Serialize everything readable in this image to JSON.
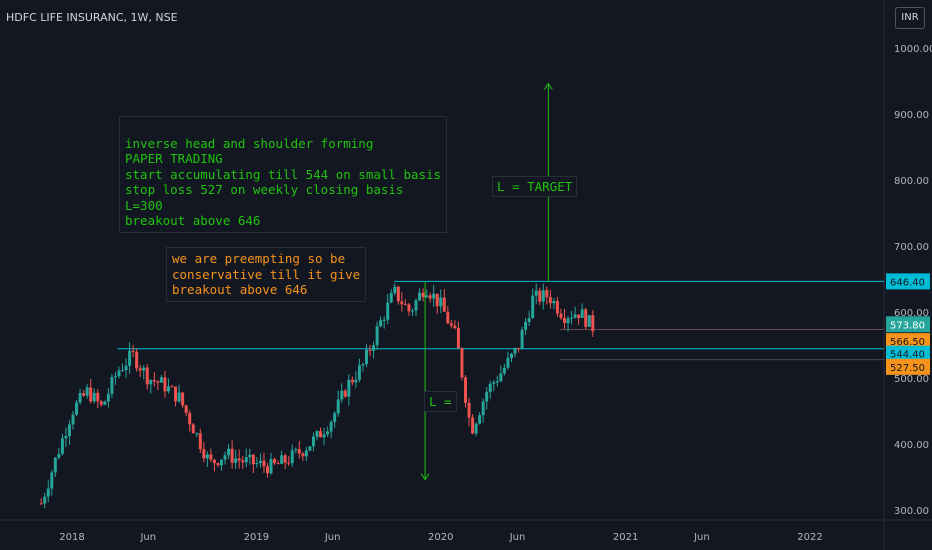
{
  "header": {
    "title": "HDFC LIFE INSURANC, 1W, NSE",
    "currency_button": "INR"
  },
  "annotations": {
    "green_note": [
      "inverse head and shoulder forming",
      "PAPER TRADING",
      "start accumulating till 544 on small basis",
      "stop loss 527 on weekly closing basis",
      "L=300",
      "breakout above 646"
    ],
    "orange_note": [
      "we are preempting so be",
      "conservative till it give",
      "breakout above 646"
    ],
    "target_label": "L = TARGET",
    "l_label": "L ="
  },
  "colors": {
    "background": "#131722",
    "up_candle": "#26a69a",
    "down_candle": "#ef5350",
    "level_line": "#00bcd4",
    "arrow": "#20c20e",
    "green_text": "#20c20e",
    "orange_text": "#f7931a",
    "axis_text": "#b2b5be"
  },
  "chart_data": {
    "type": "candlestick",
    "symbol": "HDFC LIFE INSURANC",
    "interval": "1W",
    "exchange": "NSE",
    "y_axis": {
      "ticks": [
        "1000.00",
        "900.00",
        "800.00",
        "700.00",
        "600.00",
        "500.00",
        "400.00",
        "300.00"
      ],
      "range": [
        290,
        1030
      ]
    },
    "x_axis": {
      "ticks": [
        "2018",
        "Jun",
        "2019",
        "Jun",
        "2020",
        "Jun",
        "2021",
        "Jun",
        "2022"
      ],
      "range": [
        "2017-09",
        "2022-12"
      ]
    },
    "price_labels": [
      {
        "value": 646.4,
        "label": "646.40",
        "style": "cyan"
      },
      {
        "value": 573.8,
        "label": "573.80",
        "style": "teal"
      },
      {
        "value": 566.5,
        "label": "566.50",
        "style": "orange"
      },
      {
        "value": 544.4,
        "label": "544.40",
        "style": "cyan"
      },
      {
        "value": 527.5,
        "label": "527.50",
        "style": "orange"
      }
    ],
    "horizontal_levels": [
      {
        "value": 646.4,
        "from": "2019-10"
      },
      {
        "value": 544.4,
        "from": "2018-04"
      }
    ],
    "arrows": [
      {
        "x": "2019-12",
        "from": 646,
        "to": 346
      },
      {
        "x": "2020-08",
        "from": 646,
        "to": 946
      }
    ],
    "series_points": [
      [
        "2017-11",
        310
      ],
      [
        "2017-12",
        380
      ],
      [
        "2018-01",
        450
      ],
      [
        "2018-02",
        480
      ],
      [
        "2018-03",
        455
      ],
      [
        "2018-04",
        510
      ],
      [
        "2018-05",
        535
      ],
      [
        "2018-06",
        500
      ],
      [
        "2018-07",
        490
      ],
      [
        "2018-08",
        470
      ],
      [
        "2018-09",
        420
      ],
      [
        "2018-10",
        370
      ],
      [
        "2018-11",
        385
      ],
      [
        "2018-12",
        375
      ],
      [
        "2019-01",
        370
      ],
      [
        "2019-02",
        365
      ],
      [
        "2019-03",
        375
      ],
      [
        "2019-04",
        390
      ],
      [
        "2019-05",
        410
      ],
      [
        "2019-06",
        440
      ],
      [
        "2019-07",
        490
      ],
      [
        "2019-08",
        520
      ],
      [
        "2019-09",
        580
      ],
      [
        "2019-10",
        630
      ],
      [
        "2019-11",
        600
      ],
      [
        "2019-12",
        640
      ],
      [
        "2020-01",
        610
      ],
      [
        "2020-02",
        560
      ],
      [
        "2020-03",
        420
      ],
      [
        "2020-04",
        480
      ],
      [
        "2020-05",
        510
      ],
      [
        "2020-06",
        545
      ],
      [
        "2020-07",
        620
      ],
      [
        "2020-08",
        625
      ],
      [
        "2020-09",
        595
      ],
      [
        "2020-10",
        600
      ],
      [
        "2020-11",
        574
      ]
    ]
  }
}
